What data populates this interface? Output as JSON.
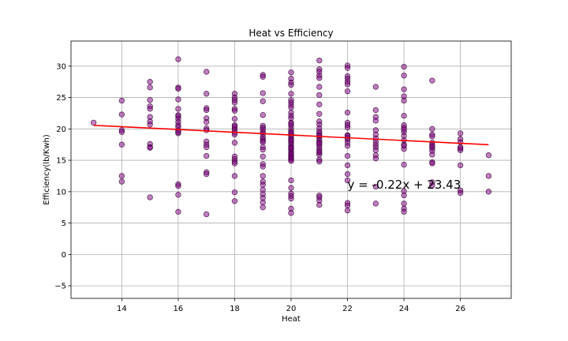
{
  "chart_data": {
    "type": "scatter",
    "title": "Heat vs Efficiency",
    "xlabel": "Heat",
    "ylabel": "Efficiency(lb/Kwh)",
    "xlim": [
      12.2,
      27.8
    ],
    "ylim": [
      -7,
      34
    ],
    "xticks": [
      14,
      16,
      18,
      20,
      22,
      24,
      26
    ],
    "yticks": [
      -5,
      0,
      5,
      10,
      15,
      20,
      25,
      30
    ],
    "grid": true,
    "point_color": "#800080",
    "point_edge_color": "#3a003a",
    "fit_line_color": "#ff0000",
    "fit_line": {
      "slope": -0.22,
      "intercept": 23.43,
      "x_range": [
        13,
        27
      ]
    },
    "annotation": "y = -0.22x + 23.43",
    "annotation_anchor": [
      22,
      10.5
    ],
    "points": {
      "x": [
        13,
        14,
        14,
        14,
        14,
        14,
        14,
        14,
        15,
        15,
        15,
        15,
        15,
        15,
        15,
        15,
        15,
        15,
        15,
        15,
        16,
        16,
        16,
        16,
        16,
        16,
        16,
        16,
        16,
        16,
        16,
        16,
        16,
        16,
        16,
        16,
        16,
        16,
        17,
        17,
        17,
        17,
        17,
        17,
        17,
        17,
        17,
        17,
        17,
        17,
        17,
        17,
        17,
        18,
        18,
        18,
        18,
        18,
        18,
        18,
        18,
        18,
        18,
        18,
        18,
        18,
        18,
        18,
        18,
        18,
        18,
        18,
        18,
        18,
        19,
        19,
        19,
        19,
        19,
        19,
        19,
        19,
        19,
        19,
        19,
        19,
        19,
        19,
        19,
        19,
        19,
        19,
        19,
        19,
        19,
        19,
        19,
        19,
        19,
        19,
        19,
        20,
        20,
        20,
        20,
        20,
        20,
        20,
        20,
        20,
        20,
        20,
        20,
        20,
        20,
        20,
        20,
        20,
        20,
        20,
        20,
        20,
        20,
        20,
        20,
        20,
        20,
        20,
        20,
        20,
        20,
        20,
        20,
        20,
        20,
        20,
        20,
        20,
        20,
        20,
        20,
        20,
        20,
        20,
        20,
        20,
        21,
        21,
        21,
        21,
        21,
        21,
        21,
        21,
        21,
        21,
        21,
        21,
        21,
        21,
        21,
        21,
        21,
        21,
        21,
        21,
        21,
        21,
        21,
        21,
        21,
        21,
        21,
        21,
        21,
        21,
        21,
        21,
        22,
        22,
        22,
        22,
        22,
        22,
        22,
        22,
        22,
        22,
        22,
        22,
        22,
        22,
        22,
        22,
        22,
        22,
        22,
        22,
        22,
        22,
        22,
        22,
        23,
        23,
        23,
        23,
        23,
        23,
        23,
        23,
        23,
        23,
        23,
        23,
        23,
        23,
        23,
        24,
        24,
        24,
        24,
        24,
        24,
        24,
        24,
        24,
        24,
        24,
        24,
        24,
        24,
        24,
        24,
        24,
        24,
        24,
        24,
        24,
        25,
        25,
        25,
        25,
        25,
        25,
        25,
        25,
        25,
        25,
        25,
        25,
        25,
        25,
        26,
        26,
        26,
        26,
        26,
        26,
        26,
        26,
        26,
        27,
        27,
        27
      ],
      "y": [
        21.0,
        24.5,
        22.3,
        19.8,
        19.5,
        17.5,
        12.5,
        11.6,
        27.5,
        26.6,
        24.6,
        23.6,
        23.2,
        21.9,
        21.2,
        20.7,
        17.6,
        17.1,
        17.0,
        9.1,
        31.1,
        26.6,
        26.4,
        24.7,
        23.2,
        22.2,
        22.0,
        21.6,
        21.1,
        20.6,
        20.3,
        19.7,
        19.3,
        11.2,
        10.9,
        9.5,
        6.8,
        19.5,
        29.1,
        25.6,
        23.3,
        23.0,
        21.7,
        21.1,
        20.1,
        19.8,
        18.0,
        17.5,
        17.1,
        15.7,
        13.1,
        12.8,
        6.4,
        25.6,
        25.0,
        24.6,
        24.2,
        23.2,
        22.9,
        21.6,
        20.6,
        20.1,
        19.8,
        19.4,
        19.1,
        17.8,
        15.6,
        15.2,
        14.8,
        14.5,
        12.5,
        9.9,
        8.5,
        20.4,
        28.6,
        28.3,
        25.7,
        24.4,
        22.2,
        20.5,
        20.2,
        19.9,
        19.5,
        19.2,
        18.7,
        18.4,
        18.1,
        17.1,
        16.7,
        15.6,
        14.4,
        14.0,
        12.5,
        11.6,
        11.1,
        10.3,
        9.6,
        9.0,
        8.3,
        7.5,
        17.9,
        29.0,
        28.0,
        27.4,
        27.0,
        25.6,
        24.6,
        24.2,
        23.8,
        23.4,
        22.6,
        22.1,
        21.7,
        21.0,
        20.5,
        20.0,
        19.6,
        19.2,
        18.9,
        18.6,
        18.3,
        18.0,
        17.7,
        17.4,
        17.1,
        16.8,
        16.5,
        16.2,
        15.9,
        15.6,
        15.3,
        15.1,
        14.9,
        11.8,
        10.6,
        9.7,
        9.3,
        8.9,
        7.3,
        6.6,
        20.8,
        19.4,
        18.2,
        17.0,
        16.0,
        15.5,
        30.9,
        29.5,
        29.1,
        28.5,
        28.1,
        26.7,
        25.4,
        23.9,
        22.4,
        21.2,
        20.7,
        20.1,
        19.6,
        19.3,
        18.9,
        18.6,
        18.2,
        17.9,
        17.5,
        17.1,
        16.7,
        16.2,
        15.9,
        15.1,
        14.8,
        9.4,
        9.1,
        8.6,
        7.9,
        19.0,
        17.7,
        16.4,
        30.1,
        29.7,
        28.4,
        28.0,
        27.5,
        27.1,
        26.0,
        22.6,
        21.0,
        20.6,
        20.2,
        19.0,
        18.6,
        18.3,
        17.8,
        17.3,
        15.7,
        14.2,
        12.8,
        11.8,
        8.2,
        7.8,
        7.0,
        18.9,
        26.7,
        23.0,
        21.9,
        21.3,
        19.8,
        19.1,
        18.5,
        18.0,
        17.5,
        17.1,
        16.6,
        15.8,
        15.3,
        10.8,
        8.1,
        29.9,
        28.5,
        26.3,
        25.2,
        24.5,
        22.1,
        20.6,
        20.2,
        19.5,
        18.9,
        18.2,
        17.5,
        16.8,
        14.3,
        10.1,
        9.4,
        8.1,
        7.3,
        6.8,
        17.3,
        19.9,
        27.7,
        20.0,
        19.1,
        18.8,
        17.8,
        17.4,
        16.9,
        16.5,
        15.9,
        14.7,
        14.5,
        11.5,
        11.0,
        17.2,
        19.3,
        18.4,
        17.9,
        17.1,
        16.6,
        14.2,
        10.2,
        9.8,
        16.9,
        15.8,
        12.5,
        10.0
      ]
    }
  }
}
